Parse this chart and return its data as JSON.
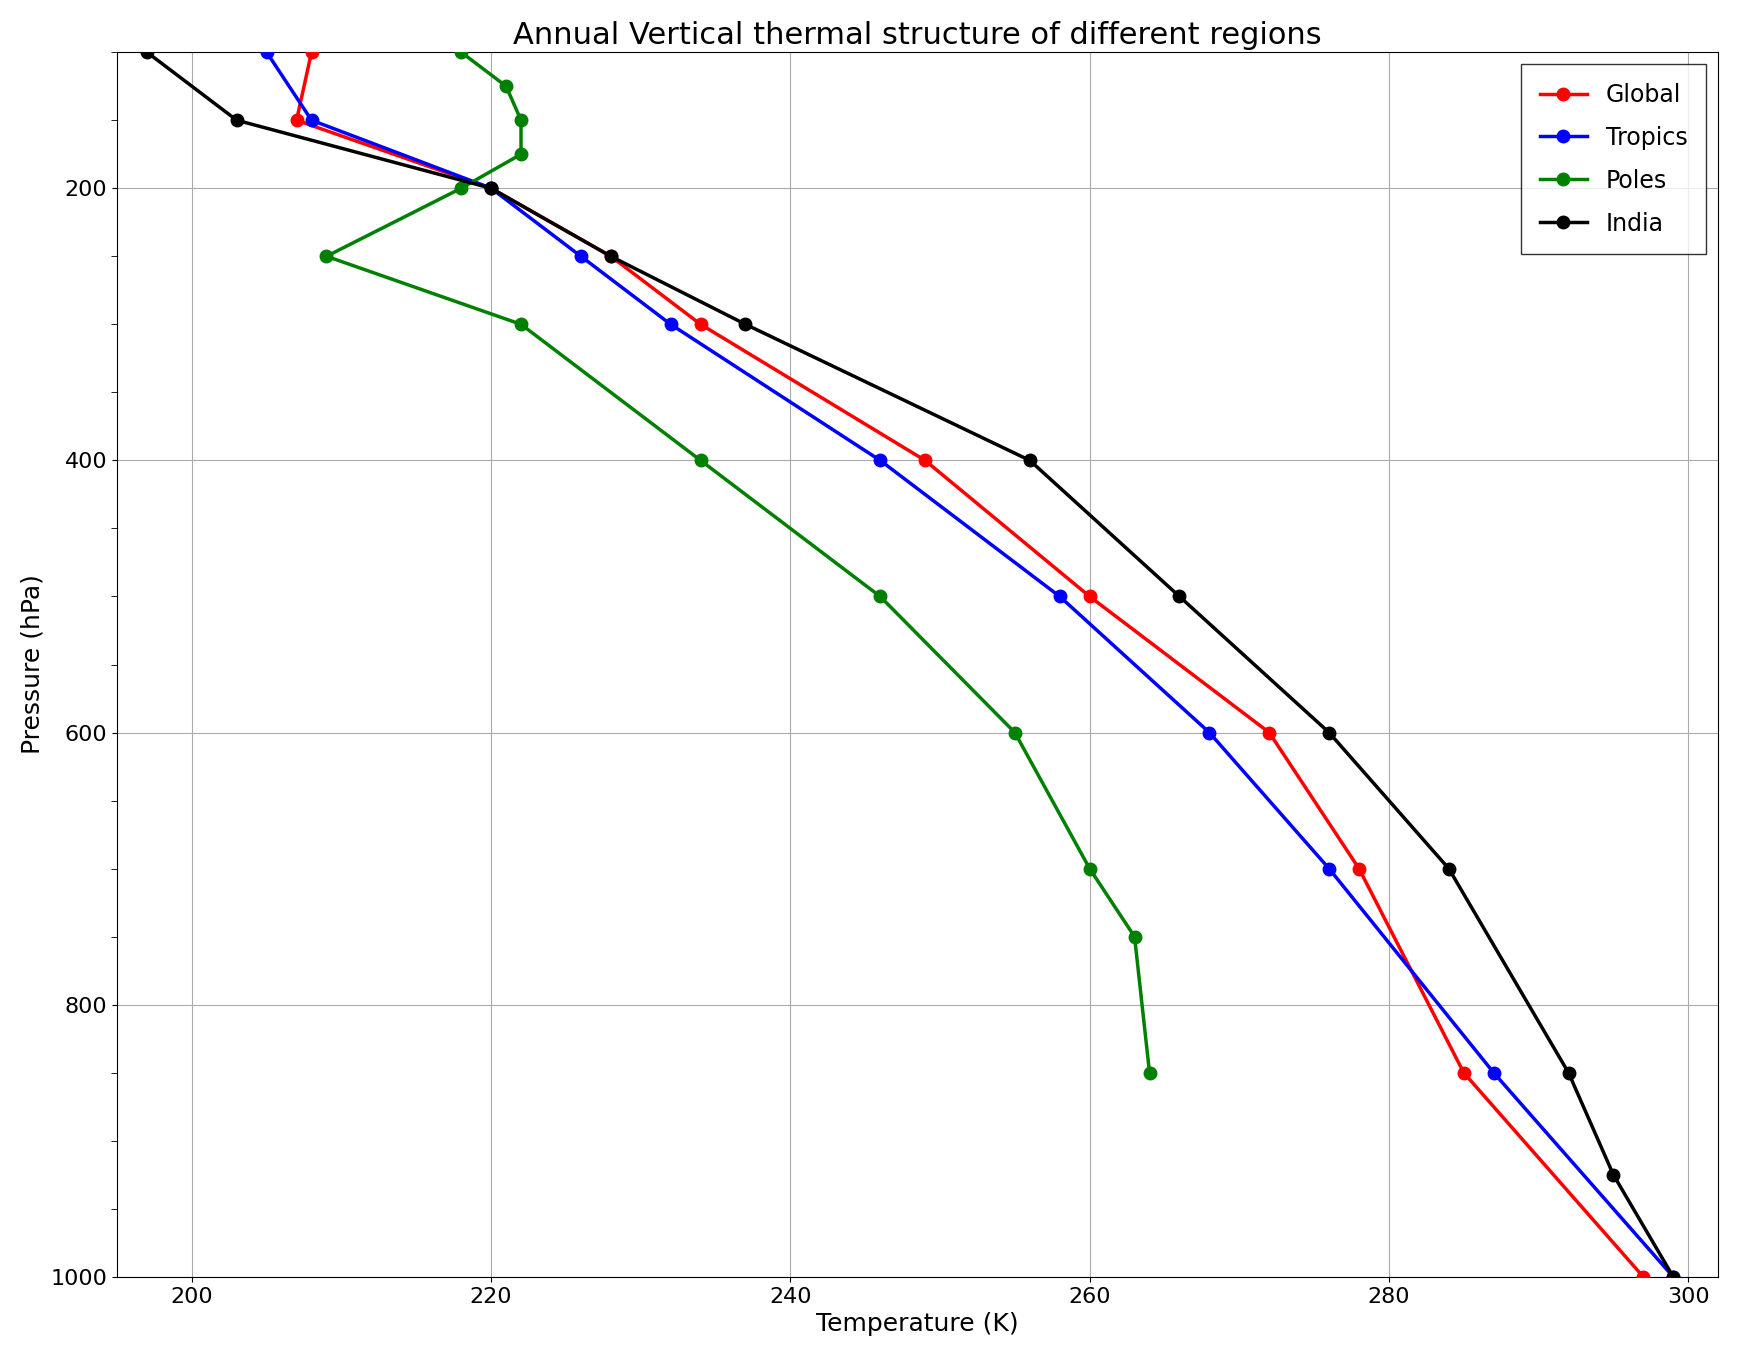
{
  "title": "Annual Vertical thermal structure of different regions",
  "xlabel": "Temperature (K)",
  "ylabel": "Pressure (hPa)",
  "xlim": [
    195,
    302
  ],
  "ylim": [
    1000,
    100
  ],
  "xticks": [
    200,
    220,
    240,
    260,
    280,
    300
  ],
  "yticks": [
    200,
    400,
    600,
    800,
    1000
  ],
  "grid": true,
  "series": [
    {
      "label": "Global",
      "color": "#ff0000",
      "pressure": [
        100,
        150,
        200,
        250,
        300,
        400,
        500,
        600,
        700,
        850,
        1000
      ],
      "temperature": [
        208,
        207,
        220,
        228,
        234,
        249,
        260,
        272,
        278,
        285,
        297
      ]
    },
    {
      "label": "Tropics",
      "color": "#0000ff",
      "pressure": [
        100,
        150,
        200,
        250,
        300,
        400,
        500,
        600,
        700,
        850,
        1000
      ],
      "temperature": [
        205,
        208,
        220,
        226,
        232,
        246,
        258,
        268,
        276,
        287,
        299
      ]
    },
    {
      "label": "Poles",
      "color": "#008000",
      "pressure": [
        100,
        125,
        150,
        175,
        200,
        250,
        300,
        400,
        500,
        600,
        700,
        750,
        850
      ],
      "temperature": [
        218,
        221,
        222,
        222,
        218,
        209,
        222,
        234,
        246,
        255,
        260,
        263,
        264
      ]
    },
    {
      "label": "India",
      "color": "#000000",
      "pressure": [
        100,
        150,
        200,
        250,
        300,
        400,
        500,
        600,
        700,
        850,
        925,
        1000
      ],
      "temperature": [
        197,
        203,
        220,
        228,
        237,
        256,
        266,
        276,
        284,
        292,
        295,
        299
      ]
    }
  ],
  "title_fontsize": 22,
  "label_fontsize": 18,
  "tick_fontsize": 16,
  "legend_fontsize": 17,
  "linewidth": 2.5,
  "markersize": 9,
  "background_color": "#ffffff",
  "grid_color": "#aaaaaa",
  "minor_ytick": 50
}
